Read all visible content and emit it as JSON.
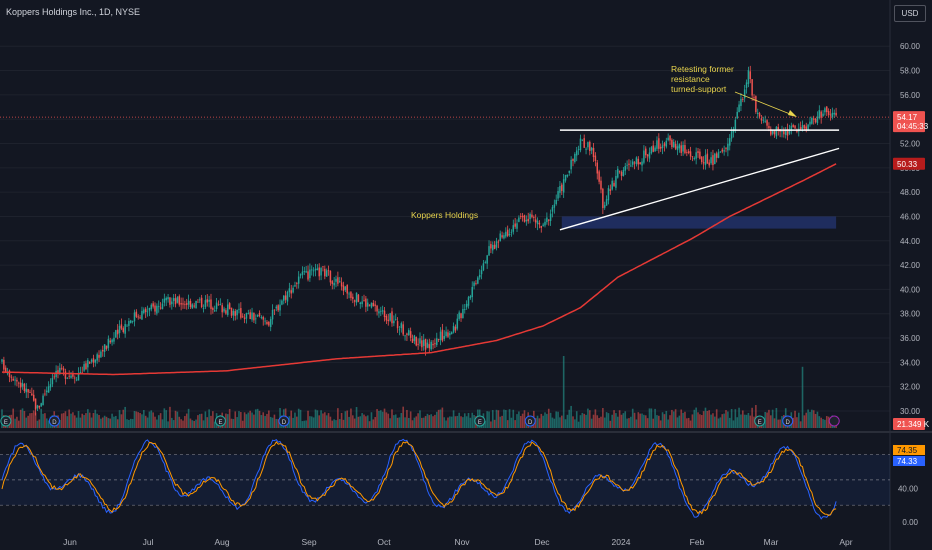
{
  "header": {
    "symbol_title": "Koppers Holdings Inc., 1D, NYSE",
    "currency": "USD"
  },
  "colors": {
    "bg": "#131722",
    "grid": "#1e222d",
    "up": "#26a69a",
    "down": "#ef5350",
    "ma": "#e53935",
    "annotation": "#e8d44d",
    "k_line": "#2962ff",
    "d_line": "#ff9800"
  },
  "annotations": {
    "retest": [
      "Retesting former",
      "resistance",
      "turned-support"
    ],
    "name_label": "Koppers Holdings"
  },
  "price_labels": {
    "last_price": "54.17",
    "countdown": "04:45:33",
    "ma_value": "50.33",
    "volume": "21.349 K"
  },
  "osc_labels": {
    "k": "74.35",
    "d": "74.33"
  },
  "chart_data": {
    "type": "line",
    "price_axis": {
      "range": [
        28.6,
        61.5
      ],
      "ticks": [
        "60.00",
        "58.00",
        "56.00",
        "54.00",
        "52.00",
        "50.00",
        "48.00",
        "46.00",
        "44.00",
        "42.00",
        "40.00",
        "38.00",
        "36.00",
        "34.00",
        "32.00",
        "30.00"
      ]
    },
    "osc_axis": {
      "range": [
        -7,
        102
      ],
      "ticks": [
        "40.00",
        "0.00"
      ],
      "band": [
        20,
        80
      ]
    },
    "x_axis_labels": [
      "Jun",
      "Jul",
      "Aug",
      "Sep",
      "Oct",
      "Nov",
      "Dec",
      "2024",
      "Feb",
      "Mar",
      "Apr"
    ],
    "price_anchors": [
      [
        0,
        33.9
      ],
      [
        14,
        31.5
      ],
      [
        19,
        30.2
      ],
      [
        28,
        33.2
      ],
      [
        40,
        33.0
      ],
      [
        55,
        35.2
      ],
      [
        70,
        37.8
      ],
      [
        90,
        39.0
      ],
      [
        110,
        38.9
      ],
      [
        128,
        38.0
      ],
      [
        143,
        37.4
      ],
      [
        150,
        39.2
      ],
      [
        160,
        41.0
      ],
      [
        172,
        41.5
      ],
      [
        190,
        39.3
      ],
      [
        205,
        38.0
      ],
      [
        220,
        36.0
      ],
      [
        228,
        35.3
      ],
      [
        243,
        37.0
      ],
      [
        260,
        43.0
      ],
      [
        275,
        45.5
      ],
      [
        283,
        46.0
      ],
      [
        290,
        45.0
      ],
      [
        300,
        48.5
      ],
      [
        310,
        52.0
      ],
      [
        316,
        51.8
      ],
      [
        322,
        47.0
      ],
      [
        330,
        49.5
      ],
      [
        340,
        50.5
      ],
      [
        350,
        51.8
      ],
      [
        358,
        52.2
      ],
      [
        370,
        51.0
      ],
      [
        380,
        50.5
      ],
      [
        388,
        51.5
      ],
      [
        396,
        55.5
      ],
      [
        400,
        57.8
      ],
      [
        404,
        54.5
      ],
      [
        410,
        53.2
      ],
      [
        420,
        53.0
      ],
      [
        430,
        53.4
      ],
      [
        440,
        54.6
      ],
      [
        447,
        54.17
      ]
    ],
    "ma_anchors": [
      [
        0,
        33.2
      ],
      [
        60,
        33.0
      ],
      [
        120,
        33.3
      ],
      [
        180,
        34.3
      ],
      [
        230,
        34.8
      ],
      [
        265,
        35.8
      ],
      [
        290,
        37.0
      ],
      [
        310,
        38.5
      ],
      [
        330,
        41.0
      ],
      [
        350,
        42.6
      ],
      [
        370,
        44.2
      ],
      [
        390,
        46.0
      ],
      [
        410,
        47.5
      ],
      [
        430,
        49.0
      ],
      [
        447,
        50.33
      ]
    ],
    "volume_spikes": [
      [
        301,
        2.0
      ],
      [
        429,
        1.7
      ]
    ],
    "support_levels": [
      [
        45.0,
        46.0
      ]
    ],
    "trendlines": [
      {
        "from": [
          299,
          53.1
        ],
        "to": [
          447,
          53.1
        ]
      },
      {
        "from": [
          299,
          44.9
        ],
        "to": [
          447,
          51.6
        ]
      }
    ]
  }
}
